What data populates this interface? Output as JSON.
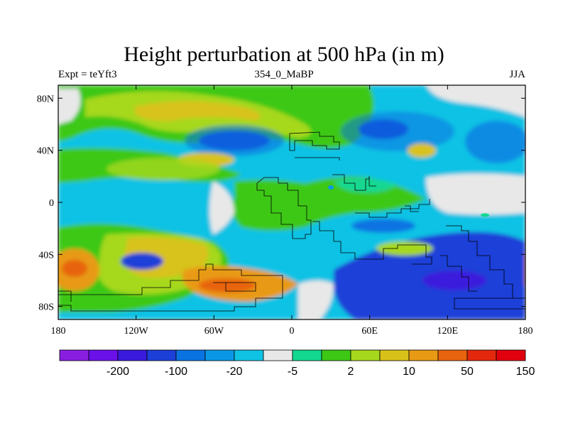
{
  "title": "Height perturbation at 500 hPa (in m)",
  "subtitle_left": "Expt = teYft3",
  "subtitle_center": "354_0_MaBP",
  "subtitle_right": "JJA",
  "axes": {
    "lon_ticks": [
      {
        "value": -180,
        "label": "180"
      },
      {
        "value": -120,
        "label": "120W"
      },
      {
        "value": -60,
        "label": "60W"
      },
      {
        "value": 0,
        "label": "0"
      },
      {
        "value": 60,
        "label": "60E"
      },
      {
        "value": 120,
        "label": "120E"
      },
      {
        "value": 180,
        "label": "180"
      }
    ],
    "lat_ticks": [
      {
        "value": 80,
        "label": "80N"
      },
      {
        "value": 40,
        "label": "40N"
      },
      {
        "value": 0,
        "label": "0"
      },
      {
        "value": -40,
        "label": "40S"
      },
      {
        "value": -80,
        "label": "80S"
      }
    ],
    "lon_range": [
      -180,
      180
    ],
    "lat_range": [
      -90,
      90
    ]
  },
  "colorbar": {
    "colors": [
      "#8a1ee0",
      "#6a10e8",
      "#3a1adc",
      "#1c3fd8",
      "#0a73e2",
      "#0a98e6",
      "#10c2e4",
      "#e8e8e8",
      "#12d890",
      "#3cc814",
      "#a6d81e",
      "#d8c21a",
      "#e89a14",
      "#e8640e",
      "#e4280e",
      "#e0000e"
    ],
    "labels": [
      {
        "after_index": 1,
        "text": "-200"
      },
      {
        "after_index": 3,
        "text": "-100"
      },
      {
        "after_index": 5,
        "text": "-20"
      },
      {
        "after_index": 7,
        "text": "-5"
      },
      {
        "after_index": 9,
        "text": "2"
      },
      {
        "after_index": 11,
        "text": "10"
      },
      {
        "after_index": 13,
        "text": "50"
      },
      {
        "after_index": 15,
        "text": "150"
      }
    ]
  },
  "colors": {
    "neg_strong": "#1c3fd8",
    "neg_mid": "#0a73e2",
    "neg_light": "#0a98e6",
    "neg_lighter": "#10c2e4",
    "neutral": "#e8e8e8",
    "pos_light": "#12d890",
    "pos_mid": "#3cc814",
    "pos_yellow": "#a6d81e",
    "pos_gold": "#d8c21a",
    "pos_orange": "#e89a14",
    "pos_dark": "#e8640e",
    "pos_red": "#e4280e"
  }
}
